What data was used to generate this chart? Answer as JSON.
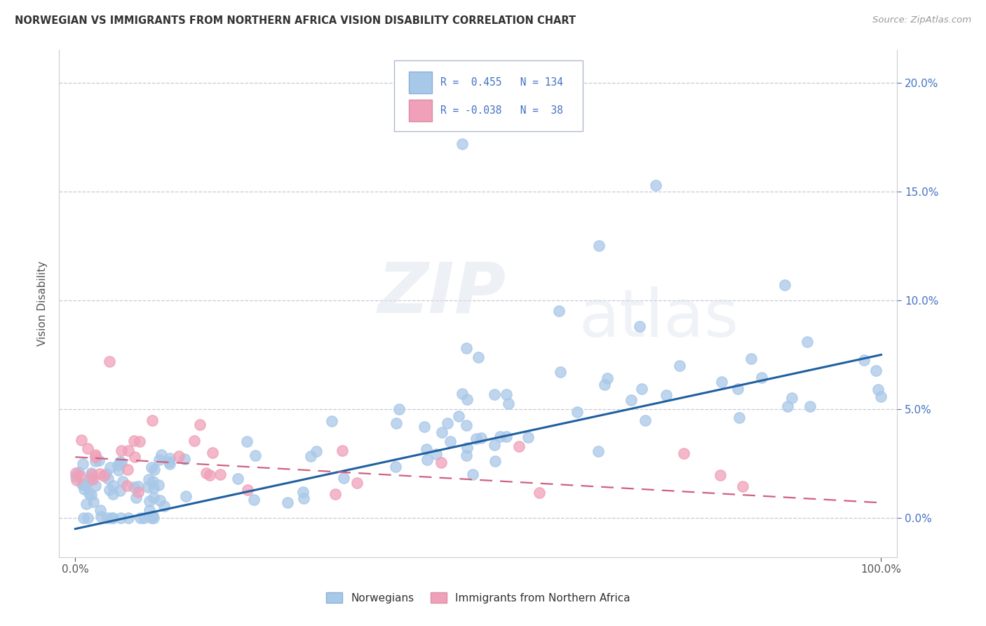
{
  "title": "NORWEGIAN VS IMMIGRANTS FROM NORTHERN AFRICA VISION DISABILITY CORRELATION CHART",
  "source": "Source: ZipAtlas.com",
  "ylabel": "Vision Disability",
  "xlim": [
    -0.02,
    1.02
  ],
  "ylim": [
    -0.018,
    0.215
  ],
  "yticks": [
    0.0,
    0.05,
    0.1,
    0.15,
    0.2
  ],
  "ytick_labels_right": [
    "0.0%",
    "5.0%",
    "10.0%",
    "15.0%",
    "20.0%"
  ],
  "xticks": [
    0.0,
    1.0
  ],
  "xtick_labels": [
    "0.0%",
    "100.0%"
  ],
  "color_norwegian": "#a8c8e8",
  "color_immigrant": "#f0a0b8",
  "line_color_norwegian": "#2060a0",
  "line_color_immigrant": "#d06080",
  "background_color": "#ffffff",
  "grid_color": "#c8c8d8",
  "watermark_zip": "ZIP",
  "watermark_atlas": "atlas",
  "norw_line_x0": 0.0,
  "norw_line_y0": -0.005,
  "norw_line_x1": 1.0,
  "norw_line_y1": 0.075,
  "imm_line_x0": 0.0,
  "imm_line_y0": 0.028,
  "imm_line_x1": 1.0,
  "imm_line_y1": 0.007
}
